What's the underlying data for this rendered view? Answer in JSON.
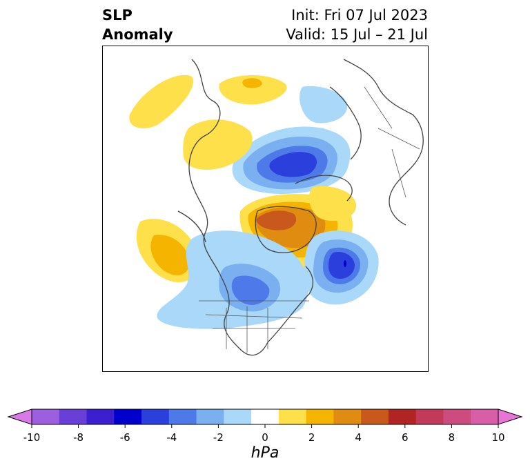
{
  "title": {
    "left_line1": "SLP",
    "left_line2": "Anomaly",
    "init": "Init: Fri 07 Jul 2023",
    "valid": "Valid: 15 Jul – 21 Jul"
  },
  "colorbar": {
    "ticks": [
      "-10",
      "-8",
      "-6",
      "-4",
      "-2",
      "0",
      "2",
      "4",
      "6",
      "8",
      "10"
    ],
    "unit": "hPa",
    "colors": [
      "#d87ae6",
      "#9c5fe0",
      "#6a3fd8",
      "#3b1fd0",
      "#0000cc",
      "#2b3fdc",
      "#4d7ae8",
      "#7ab0f0",
      "#aad8f8",
      "#ffffff",
      "#fde04a",
      "#f4b400",
      "#e08c10",
      "#c8581c",
      "#b02424",
      "#c23a5a",
      "#cc4c80",
      "#d85ea8",
      "#e874d8"
    ]
  }
}
